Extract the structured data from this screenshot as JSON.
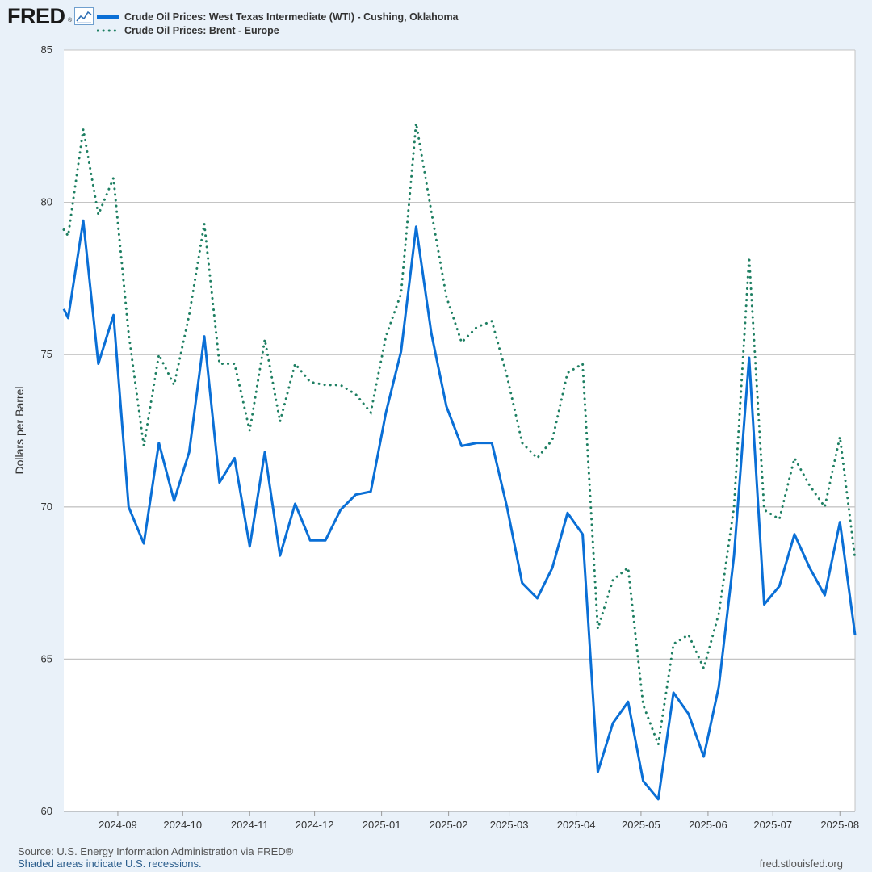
{
  "header": {
    "logo_text": "FRED",
    "logo_reg": "®",
    "logo_icon": "line-graph-icon"
  },
  "chart_data": {
    "type": "line",
    "title": "",
    "xlabel": "",
    "ylabel": "Dollars per Barrel",
    "ylim": [
      60,
      85
    ],
    "yticks": [
      60,
      65,
      70,
      75,
      80,
      85
    ],
    "grid": true,
    "legend_position": "top-left",
    "x_tick_labels": [
      "2024-09",
      "2024-10",
      "2024-11",
      "2024-12",
      "2025-01",
      "2025-02",
      "2025-03",
      "2025-04",
      "2025-05",
      "2025-06",
      "2025-07",
      "2025-08"
    ],
    "x_tick_dates": [
      "2024-09-01",
      "2024-10-01",
      "2024-11-01",
      "2024-12-01",
      "2025-01-01",
      "2025-02-01",
      "2025-03-01",
      "2025-04-01",
      "2025-05-01",
      "2025-06-01",
      "2025-07-01",
      "2025-08-01"
    ],
    "x_start": "2024-08-07",
    "x_end": "2025-08-08",
    "dates": [
      "2024-08-07",
      "2024-08-09",
      "2024-08-16",
      "2024-08-23",
      "2024-08-30",
      "2024-09-06",
      "2024-09-13",
      "2024-09-20",
      "2024-09-27",
      "2024-10-04",
      "2024-10-11",
      "2024-10-18",
      "2024-10-25",
      "2024-11-01",
      "2024-11-08",
      "2024-11-15",
      "2024-11-22",
      "2024-11-29",
      "2024-12-06",
      "2024-12-13",
      "2024-12-20",
      "2024-12-27",
      "2025-01-03",
      "2025-01-10",
      "2025-01-17",
      "2025-01-24",
      "2025-01-31",
      "2025-02-07",
      "2025-02-14",
      "2025-02-21",
      "2025-02-28",
      "2025-03-07",
      "2025-03-14",
      "2025-03-21",
      "2025-03-28",
      "2025-04-04",
      "2025-04-11",
      "2025-04-18",
      "2025-04-25",
      "2025-05-02",
      "2025-05-09",
      "2025-05-16",
      "2025-05-23",
      "2025-05-30",
      "2025-06-06",
      "2025-06-13",
      "2025-06-20",
      "2025-06-27",
      "2025-07-04",
      "2025-07-11",
      "2025-07-18",
      "2025-07-25",
      "2025-08-01",
      "2025-08-08"
    ],
    "series": [
      {
        "name": "Crude Oil Prices: West Texas Intermediate (WTI) - Cushing, Oklahoma",
        "color": "#0a6fd6",
        "style": "solid",
        "values": [
          76.5,
          76.2,
          79.4,
          74.7,
          76.3,
          70.0,
          68.8,
          72.1,
          70.2,
          71.8,
          75.6,
          70.8,
          71.6,
          68.7,
          71.8,
          68.4,
          70.1,
          68.9,
          68.9,
          69.9,
          70.4,
          70.5,
          73.1,
          75.1,
          79.2,
          75.7,
          73.3,
          72.0,
          72.1,
          72.1,
          70.0,
          67.5,
          67.0,
          68.0,
          69.8,
          69.1,
          61.3,
          62.9,
          63.6,
          61.0,
          60.4,
          63.9,
          63.2,
          61.8,
          64.1,
          68.4,
          74.9,
          66.8,
          67.4,
          69.1,
          68.0,
          67.1,
          69.5,
          65.8
        ]
      },
      {
        "name": "Crude Oil Prices: Brent - Europe",
        "color": "#1e7f62",
        "style": "dotted",
        "values": [
          79.1,
          78.9,
          82.4,
          79.6,
          80.8,
          75.7,
          72.0,
          75.0,
          74.0,
          76.3,
          79.3,
          74.7,
          74.7,
          72.5,
          75.5,
          72.8,
          74.7,
          74.1,
          74.0,
          74.0,
          73.7,
          73.1,
          75.6,
          77.0,
          82.6,
          79.7,
          76.9,
          75.4,
          75.9,
          76.1,
          74.3,
          72.1,
          71.6,
          72.2,
          74.4,
          74.7,
          66.0,
          67.6,
          68.0,
          63.5,
          62.2,
          65.5,
          65.8,
          64.7,
          66.5,
          70.0,
          78.2,
          69.9,
          69.6,
          71.6,
          70.7,
          70.0,
          72.3,
          68.3
        ]
      }
    ]
  },
  "footer": {
    "source": "Source: U.S. Energy Information Administration via FRED®",
    "recession_note": "Shaded areas indicate U.S. recessions.",
    "site": "fred.stlouisfed.org"
  },
  "colors": {
    "background": "#e9f1f9",
    "plot_background": "#ffffff",
    "grid": "#c4c4c4",
    "wti": "#0a6fd6",
    "brent": "#1e7f62"
  }
}
